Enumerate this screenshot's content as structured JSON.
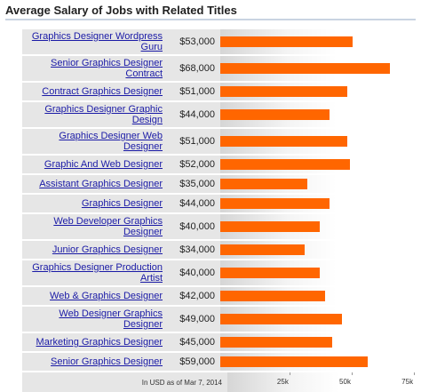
{
  "chart_data": {
    "type": "bar",
    "orientation": "horizontal",
    "title": "Average Salary of Jobs with Related Titles",
    "categories": [
      "Graphics Designer Wordpress Guru",
      "Senior Graphics Designer Contract",
      "Contract Graphics Designer",
      "Graphics Designer Graphic Design",
      "Graphics Designer Web Designer",
      "Graphic And Web Designer",
      "Assistant Graphics Designer",
      "Graphics Designer",
      "Web Developer Graphics Designer",
      "Junior Graphics Designer",
      "Graphics Designer Production Artist",
      "Web & Graphics Designer",
      "Web Designer Graphics Designer",
      "Marketing Graphics Designer",
      "Senior Graphics Designer"
    ],
    "values": [
      53000,
      68000,
      51000,
      44000,
      51000,
      52000,
      35000,
      44000,
      40000,
      34000,
      40000,
      42000,
      49000,
      45000,
      59000
    ],
    "value_labels": [
      "$53,000",
      "$68,000",
      "$51,000",
      "$44,000",
      "$51,000",
      "$52,000",
      "$35,000",
      "$44,000",
      "$40,000",
      "$34,000",
      "$40,000",
      "$42,000",
      "$49,000",
      "$45,000",
      "$59,000"
    ],
    "color": "#ff6600",
    "xlim": [
      0,
      77000
    ],
    "xticks": [
      {
        "value": 25000,
        "label": "25k"
      },
      {
        "value": 50000,
        "label": "50k"
      },
      {
        "value": 75000,
        "label": "75k"
      }
    ],
    "note": "In USD as of Mar 7, 2014"
  }
}
